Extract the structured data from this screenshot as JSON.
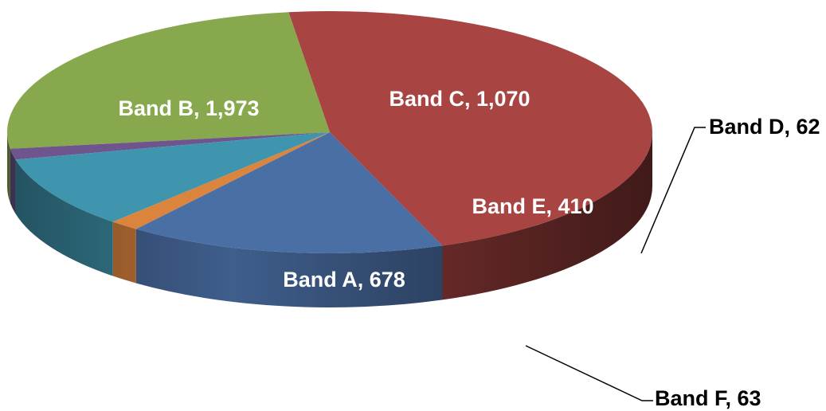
{
  "chart_data": {
    "type": "pie",
    "title": "",
    "categories": [
      "Band A",
      "Band B",
      "Band C",
      "Band D",
      "Band E",
      "Band F"
    ],
    "values": [
      678,
      1973,
      1070,
      62,
      410,
      63
    ],
    "labels": [
      "Band A, 678",
      "Band B, 1,973",
      "Band C, 1,070",
      "Band D, 62",
      "Band E, 410",
      "Band F, 63"
    ],
    "colors": [
      "#4A6FA5",
      "#A84442",
      "#88A84E",
      "#6E558E",
      "#3F95AE",
      "#DB843D"
    ],
    "legend": "none",
    "style": "3d"
  }
}
